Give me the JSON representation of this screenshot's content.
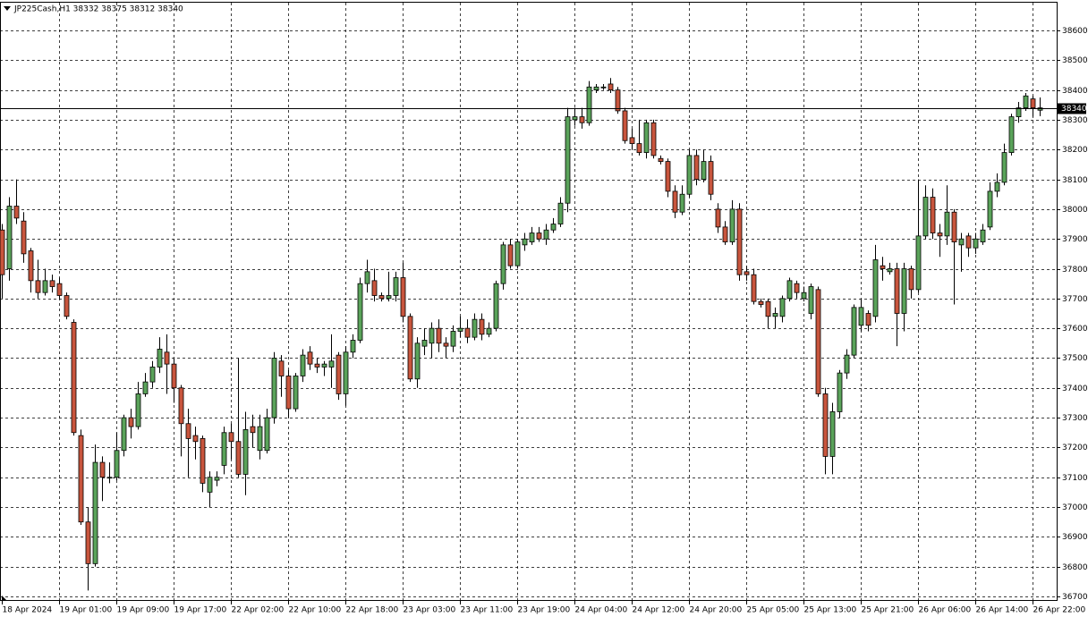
{
  "chart_data": {
    "type": "candlestick",
    "title": "JP225Cash,H1  38332 38375 38312 38340",
    "categories": [
      "18 Apr 2024",
      null,
      null,
      null,
      null,
      null,
      null,
      null,
      "19 Apr 01:00",
      null,
      null,
      null,
      null,
      null,
      null,
      null,
      "19 Apr 09:00",
      null,
      null,
      null,
      null,
      null,
      null,
      null,
      "19 Apr 17:00",
      null,
      null,
      null,
      null,
      null,
      null,
      null,
      "22 Apr 02:00",
      null,
      null,
      null,
      null,
      null,
      null,
      null,
      "22 Apr 10:00",
      null,
      null,
      null,
      null,
      null,
      null,
      null,
      "22 Apr 18:00",
      null,
      null,
      null,
      null,
      null,
      null,
      null,
      "23 Apr 03:00",
      null,
      null,
      null,
      null,
      null,
      null,
      null,
      "23 Apr 11:00",
      null,
      null,
      null,
      null,
      null,
      null,
      null,
      "23 Apr 19:00",
      null,
      null,
      null,
      null,
      null,
      null,
      null,
      "24 Apr 04:00",
      null,
      null,
      null,
      null,
      null,
      null,
      null,
      "24 Apr 12:00",
      null,
      null,
      null,
      null,
      null,
      null,
      null,
      "24 Apr 20:00",
      null,
      null,
      null,
      null,
      null,
      null,
      null,
      "25 Apr 05:00",
      null,
      null,
      null,
      null,
      null,
      null,
      null,
      "25 Apr 13:00",
      null,
      null,
      null,
      null,
      null,
      null,
      null,
      "25 Apr 21:00",
      null,
      null,
      null,
      null,
      null,
      null,
      null,
      "26 Apr 06:00",
      null,
      null,
      null,
      null,
      null,
      null,
      null,
      "26 Apr 14:00",
      null,
      null,
      null,
      null,
      null,
      null,
      null,
      "26 Apr 22:00",
      null
    ],
    "open": [
      37930,
      37800,
      38010,
      37960,
      37860,
      37760,
      37720,
      37760,
      37750,
      37710,
      37620,
      37240,
      36950,
      36810,
      37150,
      37100,
      37100,
      37190,
      37300,
      37270,
      37380,
      37420,
      37470,
      37520,
      37480,
      37400,
      37280,
      37240,
      37230,
      37050,
      37090,
      37140,
      37250,
      37220,
      37110,
      37270,
      37190,
      37190,
      37300,
      37490,
      37440,
      37330,
      37440,
      37520,
      37480,
      37470,
      37470,
      37510,
      37380,
      37520,
      37560,
      37750,
      37760,
      37710,
      37700,
      37710,
      37770,
      37640,
      37430,
      37540,
      37550,
      37600,
      37550,
      37540,
      37590,
      37600,
      37570,
      37630,
      37580,
      37600,
      37750,
      37880,
      37810,
      37880,
      37890,
      37920,
      37900,
      37930,
      37950,
      38020,
      38300,
      38310,
      38290,
      38400,
      38410,
      38420,
      38400,
      38330,
      38240,
      38220,
      38190,
      38290,
      38170,
      38160,
      38060,
      37990,
      38050,
      38180,
      38100,
      38160,
      38000,
      37940,
      37890,
      38000,
      37790,
      37780,
      37690,
      37690,
      37640,
      37640,
      37700,
      37750,
      37700,
      37650,
      37730,
      37380,
      37170,
      37320,
      37450,
      37510,
      37610,
      37650,
      37640,
      37810,
      37790,
      37800,
      37650,
      37800,
      37730,
      37910,
      38040,
      37920,
      37910,
      37990,
      37880,
      37910,
      37870,
      37890,
      37940,
      38060,
      38090,
      38190,
      38310,
      38340,
      38370,
      38332
    ],
    "high": [
      37950,
      38040,
      38100,
      37990,
      37870,
      37830,
      37800,
      37780,
      37770,
      37720,
      37630,
      37260,
      37000,
      37210,
      37170,
      37150,
      37250,
      37310,
      37330,
      37420,
      37450,
      37490,
      37570,
      37580,
      37500,
      37410,
      37330,
      37270,
      37240,
      37120,
      37120,
      37270,
      37280,
      37500,
      37320,
      37310,
      37310,
      37330,
      37520,
      37510,
      37460,
      37450,
      37530,
      37540,
      37500,
      37490,
      37580,
      37520,
      37540,
      37580,
      37770,
      37830,
      37800,
      37720,
      37790,
      37790,
      37820,
      37650,
      37570,
      37600,
      37620,
      37630,
      37570,
      37610,
      37640,
      37630,
      37650,
      37650,
      37620,
      37760,
      37890,
      37900,
      37900,
      37920,
      37940,
      37940,
      37950,
      37970,
      38040,
      38340,
      38340,
      38340,
      38430,
      38420,
      38420,
      38440,
      38410,
      38340,
      38270,
      38300,
      38300,
      38300,
      38180,
      38170,
      38080,
      38080,
      38200,
      38200,
      38200,
      38180,
      38020,
      37960,
      38030,
      38020,
      37810,
      37800,
      37700,
      37700,
      37670,
      37710,
      37770,
      37760,
      37740,
      37750,
      37740,
      37400,
      37350,
      37460,
      37530,
      37680,
      37700,
      37660,
      37880,
      37840,
      37820,
      37820,
      37820,
      37810,
      38100,
      38080,
      38070,
      37950,
      38080,
      38000,
      37920,
      37920,
      37920,
      37950,
      38090,
      38120,
      38220,
      38320,
      38360,
      38390,
      38380,
      38375
    ],
    "low": [
      37700,
      37760,
      37950,
      37820,
      37720,
      37700,
      37710,
      37720,
      37700,
      37630,
      37240,
      36940,
      36720,
      36800,
      37020,
      37080,
      37090,
      37170,
      37230,
      37260,
      37370,
      37400,
      37450,
      37380,
      37350,
      37170,
      37100,
      37160,
      37050,
      37000,
      37070,
      37110,
      37160,
      37100,
      37040,
      37200,
      37160,
      37180,
      37280,
      37370,
      37300,
      37320,
      37420,
      37460,
      37450,
      37440,
      37400,
      37360,
      37340,
      37500,
      37550,
      37720,
      37690,
      37690,
      37690,
      37690,
      37620,
      37420,
      37400,
      37510,
      37500,
      37520,
      37500,
      37520,
      37570,
      37550,
      37560,
      37560,
      37570,
      37590,
      37730,
      37800,
      37800,
      37860,
      37880,
      37890,
      37880,
      37920,
      37940,
      37990,
      38280,
      38270,
      38280,
      38390,
      38400,
      38390,
      38320,
      38220,
      38200,
      38180,
      38170,
      38170,
      38150,
      38040,
      37970,
      37980,
      38040,
      38080,
      38090,
      38030,
      37920,
      37880,
      37880,
      37760,
      37760,
      37680,
      37670,
      37600,
      37600,
      37620,
      37690,
      37700,
      37690,
      37630,
      37370,
      37110,
      37110,
      37300,
      37430,
      37500,
      37590,
      37590,
      37620,
      37760,
      37780,
      37540,
      37590,
      37700,
      37720,
      37900,
      37900,
      37840,
      37880,
      37680,
      37790,
      37840,
      37850,
      37880,
      37930,
      38040,
      38080,
      38180,
      38290,
      38330,
      38310,
      38312
    ],
    "close": [
      37780,
      38010,
      37970,
      37850,
      37760,
      37720,
      37760,
      37740,
      37710,
      37640,
      37250,
      36950,
      36810,
      37150,
      37100,
      37100,
      37190,
      37300,
      37270,
      37380,
      37420,
      37470,
      37530,
      37480,
      37400,
      37280,
      37230,
      37220,
      37080,
      37100,
      37100,
      37250,
      37220,
      37110,
      37260,
      37250,
      37270,
      37300,
      37500,
      37440,
      37330,
      37440,
      37510,
      37480,
      37470,
      37480,
      37490,
      37380,
      37520,
      37560,
      37750,
      37790,
      37710,
      37700,
      37710,
      37770,
      37640,
      37430,
      37550,
      37560,
      37600,
      37550,
      37540,
      37590,
      37600,
      37570,
      37630,
      37580,
      37600,
      37750,
      37880,
      37810,
      37890,
      37900,
      37920,
      37900,
      37930,
      37950,
      38020,
      38310,
      38310,
      38290,
      38410,
      38410,
      38410,
      38400,
      38330,
      38230,
      38220,
      38190,
      38290,
      38180,
      38160,
      38060,
      37990,
      38050,
      38180,
      38100,
      38160,
      38050,
      37940,
      37890,
      38000,
      37780,
      37780,
      37690,
      37680,
      37640,
      37650,
      37700,
      37760,
      37720,
      37720,
      37740,
      37380,
      37170,
      37320,
      37450,
      37510,
      37670,
      37670,
      37610,
      37830,
      37800,
      37800,
      37650,
      37800,
      37730,
      37910,
      38040,
      37920,
      37910,
      37990,
      37890,
      37900,
      37870,
      37900,
      37930,
      38060,
      38090,
      38190,
      38310,
      38340,
      38380,
      38340,
      38340
    ],
    "up_color": "#5aa35a",
    "down_color": "#c8553d",
    "last_price": 38340,
    "ylim": [
      36685,
      38693
    ],
    "yticks": [
      36700,
      36800,
      36900,
      37000,
      37100,
      37200,
      37300,
      37400,
      37500,
      37600,
      37700,
      37800,
      37900,
      38000,
      38100,
      38200,
      38300,
      38400,
      38500,
      38600
    ],
    "grid": true
  }
}
